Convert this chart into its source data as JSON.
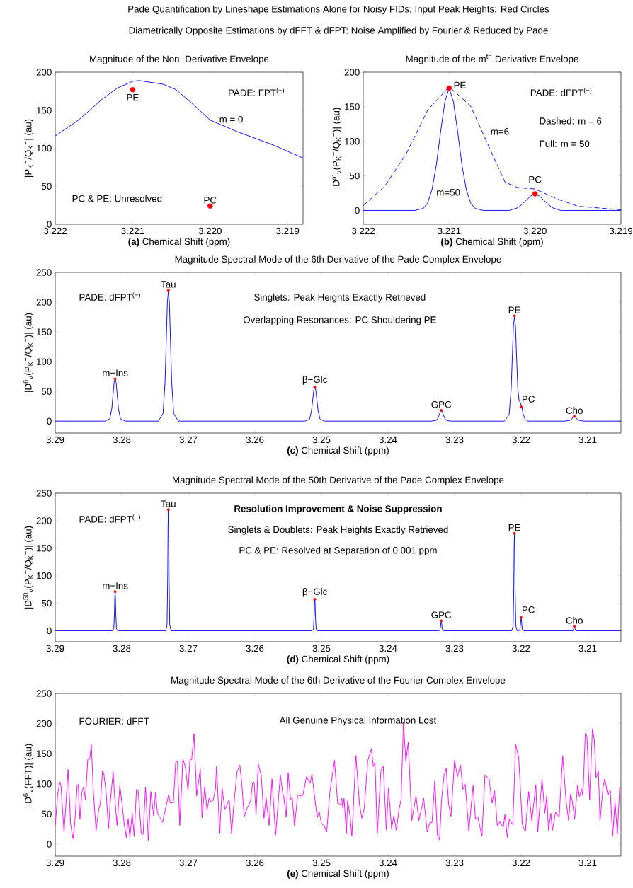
{
  "chart_data": [
    {
      "type": "line",
      "title": "Magnitude of the Non−Derivative Envelope",
      "xlabel": "**(a)** Chemical Shift (ppm)",
      "ylabel": "|P$_{K}$$^{−}$/Q$_{K}$$^{−}$| (au)",
      "xlim": [
        3.222,
        3.2188
      ],
      "xticks": [
        3.222,
        3.221,
        {
          "value": 3.22,
          "label": "3.220"
        },
        3.219
      ],
      "ylim": [
        0,
        200
      ],
      "yticks": [
        0,
        50,
        100,
        150,
        200
      ],
      "series": [
        {
          "name": "m = 0",
          "color": "#0000ff",
          "x": [
            3.222,
            3.2217,
            3.2214,
            3.2212,
            3.221,
            3.22092,
            3.2206,
            3.22044,
            3.2202,
            3.22,
            3.21968,
            3.21918,
            3.2188
          ],
          "values": [
            116,
            137,
            164,
            179,
            188,
            189,
            184,
            177,
            156,
            137,
            123,
            104,
            87
          ]
        },
        {
          "type": "scatter",
          "marker": "circle",
          "color": "#ff0000",
          "x": [
            3.221,
            3.22
          ],
          "values": [
            177,
            24
          ]
        }
      ],
      "annotations": [
        "Pade Quantification by Lineshape Estimations Alone for Noisy FIDs; Input Peak Heights: Red Circles",
        "Diametrically Opposite Estimations by dFFT & dFPT: Noise Amplified by Fourier & Reduced by Pade",
        "PADE: FPT$^{(−)}$",
        "PC & PE: Unresolved",
        {
          "text": "PE",
          "x": 3.221,
          "y": 177
        },
        {
          "text": "PC",
          "x": 3.22,
          "y": 24
        }
      ]
    },
    {
      "type": "line",
      "title": "Magnitude of the m$^{th}$ Derivative Envelope",
      "xlabel": "**(b)** Chemical Shift (ppm)",
      "ylabel": "|D$^{m}$$_{ν}$(P$_{K}$$^{−}$/Q$_{K}$$^{−}$)| (au)",
      "xlim": [
        3.222,
        3.219
      ],
      "xticks": [
        3.222,
        3.221,
        {
          "value": 3.22,
          "label": "3.220"
        },
        3.219
      ],
      "ylim": [
        -20,
        200
      ],
      "yticks": [
        0,
        50,
        100,
        150,
        200
      ],
      "series": [
        {
          "name": "m=6",
          "color": "#0000ff",
          "line_style": "dashed",
          "x": [
            3.222,
            3.22175,
            3.2215,
            3.22125,
            3.221,
            3.22075,
            3.2205,
            3.22035,
            3.2202,
            3.22,
            3.21975,
            3.2195,
            3.219
          ],
          "values": [
            7,
            35,
            82,
            145,
            179,
            151,
            82,
            41,
            33,
            31,
            17,
            6,
            1
          ]
        },
        {
          "name": "m=50",
          "color": "#0000ff",
          "line_style": "solid",
          "x": [
            3.222,
            3.2214,
            3.2213,
            3.22125,
            3.2212,
            3.22115,
            3.2211,
            3.22105,
            3.221,
            3.22095,
            3.2209,
            3.22085,
            3.2208,
            3.22075,
            3.2207,
            3.2206,
            3.2203,
            3.2202,
            3.22015,
            3.2201,
            3.22005,
            3.22,
            3.21995,
            3.2199,
            3.21985,
            3.2198,
            3.2197,
            3.219
          ],
          "values": [
            0,
            0,
            3,
            11,
            30,
            65,
            113,
            157,
            177,
            157,
            113,
            65,
            30,
            11,
            3,
            0,
            0,
            4,
            9,
            15,
            21,
            24,
            21,
            15,
            9,
            4,
            0,
            0
          ]
        },
        {
          "type": "scatter",
          "marker": "circle",
          "color": "#ff0000",
          "x": [
            3.221,
            3.22
          ],
          "values": [
            177,
            24
          ]
        }
      ],
      "annotations": [
        "PADE: dFPT$^{(−)}$",
        "Dashed: m = 6",
        "Full: m = 50",
        {
          "text": "PE",
          "x": 3.221,
          "y": 177
        },
        {
          "text": "PC",
          "x": 3.22,
          "y": 24
        }
      ]
    },
    {
      "type": "line",
      "title": "Magnitude Spectral Mode of the 6th Derivative of the Pade Complex Envelope",
      "xlabel": "**(c)** Chemical Shift (ppm)",
      "ylabel": "|D$^{6}$$_{ν}$(P$_{K}$$^{−}$/Q$_{K}$$^{−}$)| (au)",
      "xlim": [
        3.29,
        3.205
      ],
      "xticks": [
        3.29,
        3.28,
        3.27,
        3.26,
        3.25,
        3.24,
        3.23,
        3.22,
        3.21
      ],
      "ylim": [
        -20,
        250
      ],
      "yticks": [
        0,
        50,
        100,
        150,
        200,
        250
      ],
      "series": [
        {
          "color": "#0000ff",
          "x": [
            3.29,
            3.2825,
            3.2818,
            3.2815,
            3.2813,
            3.28115,
            3.281,
            3.28085,
            3.2807,
            3.2805,
            3.2802,
            3.2795,
            3.2745,
            3.2738,
            3.2735,
            3.2733,
            3.27315,
            3.273,
            3.27285,
            3.2727,
            3.2725,
            3.2722,
            3.2715,
            3.2525,
            3.2518,
            3.2515,
            3.2513,
            3.25115,
            3.251,
            3.25085,
            3.2507,
            3.2505,
            3.2502,
            3.2495,
            3.2335,
            3.2328,
            3.2325,
            3.2323,
            3.23215,
            3.232,
            3.23185,
            3.2317,
            3.2315,
            3.2312,
            3.2305,
            3.2225,
            3.2218,
            3.2215,
            3.2213,
            3.22115,
            3.221,
            3.22085,
            3.2207,
            3.2205,
            3.2203,
            3.2201,
            3.2199,
            3.2197,
            3.2194,
            3.219,
            3.2135,
            3.2128,
            3.2125,
            3.2123,
            3.21215,
            3.212,
            3.21185,
            3.2117,
            3.2115,
            3.2112,
            3.2105,
            3.205
          ],
          "values": [
            0,
            0,
            4,
            21,
            46,
            65,
            71,
            65,
            46,
            21,
            4,
            0,
            0,
            13,
            65,
            142,
            200,
            218,
            200,
            142,
            65,
            13,
            0,
            0,
            3,
            17,
            37,
            52,
            57,
            52,
            37,
            17,
            3,
            0,
            0,
            1,
            5,
            11,
            16,
            17,
            16,
            11,
            5,
            1,
            0,
            0,
            11,
            53,
            114,
            161,
            175,
            161,
            114,
            55,
            34,
            31,
            24,
            12,
            3,
            0,
            0,
            1,
            2,
            5,
            7,
            8,
            7,
            5,
            2,
            1,
            0,
            0
          ]
        },
        {
          "type": "scatter",
          "marker": "circle",
          "color": "#ff0000",
          "x": [
            3.281,
            3.273,
            3.251,
            3.232,
            3.221,
            3.22,
            3.212
          ],
          "values": [
            71,
            220,
            57,
            18,
            177,
            24,
            8
          ]
        }
      ],
      "annotations": [
        "PADE: dFPT$^{(−)}$",
        "Singlets: Peak Heights Exactly Retrieved",
        "Overlapping Resonances: PC Shouldering PE",
        {
          "text": "m−Ins",
          "x": 3.281,
          "y": 71
        },
        {
          "text": "Tau",
          "x": 3.273,
          "y": 220
        },
        {
          "text": "β−Glc",
          "x": 3.251,
          "y": 57
        },
        {
          "text": "GPC",
          "x": 3.232,
          "y": 18
        },
        {
          "text": "PE",
          "x": 3.221,
          "y": 177
        },
        {
          "text": "PC",
          "x": 3.22,
          "y": 24
        },
        {
          "text": "Cho",
          "x": 3.212,
          "y": 8
        }
      ]
    },
    {
      "type": "line",
      "title": "Magnitude Spectral Mode of the 50th Derivative of the Pade Complex Envelope",
      "xlabel": "**(d)** Chemical Shift (ppm)",
      "ylabel": "|D$^{50}$$_{ν}$(P$_{K}$$^{−}$/Q$_{K}$$^{−}$)| (au)",
      "xlim": [
        3.29,
        3.205
      ],
      "xticks": [
        3.29,
        3.28,
        3.27,
        3.26,
        3.25,
        3.24,
        3.23,
        3.22,
        3.21
      ],
      "ylim": [
        -20,
        250
      ],
      "yticks": [
        0,
        50,
        100,
        150,
        200,
        250
      ],
      "series": [
        {
          "color": "#0000ff",
          "x": [
            3.29,
            3.2814,
            3.2812,
            3.2811,
            3.28105,
            3.281,
            3.28095,
            3.2809,
            3.2808,
            3.2806,
            3.2734,
            3.2732,
            3.2731,
            3.27305,
            3.273,
            3.27295,
            3.2729,
            3.2728,
            3.2726,
            3.2514,
            3.2512,
            3.2511,
            3.25105,
            3.251,
            3.25095,
            3.2509,
            3.2508,
            3.2506,
            3.2324,
            3.2322,
            3.2321,
            3.23205,
            3.232,
            3.23195,
            3.2319,
            3.2318,
            3.2316,
            3.2214,
            3.2212,
            3.2211,
            3.22105,
            3.221,
            3.22095,
            3.2209,
            3.2208,
            3.2206,
            3.2204,
            3.2202,
            3.2201,
            3.22005,
            3.22,
            3.21995,
            3.2199,
            3.2198,
            3.2196,
            3.2124,
            3.2122,
            3.2121,
            3.21205,
            3.212,
            3.21195,
            3.2119,
            3.2118,
            3.2116,
            3.205
          ],
          "values": [
            0,
            0,
            4,
            32,
            60,
            71,
            60,
            32,
            4,
            0,
            0,
            11,
            99,
            187,
            220,
            187,
            99,
            11,
            0,
            0,
            3,
            26,
            48,
            57,
            48,
            26,
            3,
            0,
            0,
            1,
            8,
            15,
            18,
            15,
            8,
            1,
            0,
            0,
            9,
            80,
            150,
            177,
            150,
            80,
            9,
            0,
            0,
            1,
            11,
            20,
            24,
            20,
            11,
            1,
            0,
            0,
            0,
            4,
            7,
            8,
            7,
            4,
            0,
            0,
            0
          ]
        },
        {
          "type": "scatter",
          "marker": "circle",
          "color": "#ff0000",
          "x": [
            3.281,
            3.273,
            3.251,
            3.232,
            3.221,
            3.22,
            3.212
          ],
          "values": [
            71,
            220,
            57,
            18,
            177,
            24,
            8
          ]
        }
      ],
      "annotations": [
        "PADE: dFPT$^{(−)}$",
        "Resolution Improvement & Noise Suppression",
        "Singlets & Doublets: Peak Heights Exactly Retrieved",
        "PC & PE: Resolved at Separation of 0.001 ppm",
        {
          "text": "m−Ins",
          "x": 3.281,
          "y": 71
        },
        {
          "text": "Tau",
          "x": 3.273,
          "y": 220
        },
        {
          "text": "β−Glc",
          "x": 3.251,
          "y": 57
        },
        {
          "text": "GPC",
          "x": 3.232,
          "y": 18
        },
        {
          "text": "PE",
          "x": 3.221,
          "y": 177
        },
        {
          "text": "PC",
          "x": 3.22,
          "y": 24
        },
        {
          "text": "Cho",
          "x": 3.212,
          "y": 8
        }
      ]
    },
    {
      "type": "line",
      "title": "Magnitude Spectral Mode of the 6th Derivative of the Fourier Complex Envelope",
      "xlabel": "**(e)** Chemical Shift (ppm)",
      "ylabel": "|D$^{6}$$_{ν}$(FFT)| (au)",
      "xlim": [
        3.29,
        3.205
      ],
      "xticks": [
        3.29,
        3.28,
        3.27,
        3.26,
        3.25,
        3.24,
        3.23,
        3.22,
        3.21
      ],
      "ylim": [
        -20,
        250
      ],
      "yticks": [
        0,
        50,
        100,
        150,
        200,
        250
      ],
      "series": [
        {
          "color": "#ff00ff",
          "x": [
            3.29,
            3.28964,
            3.28929,
            3.28914,
            3.28868,
            3.28839,
            3.28807,
            3.28768,
            3.28732,
            3.28707,
            3.28671,
            3.28654,
            3.28629,
            3.286,
            3.28575,
            3.28546,
            3.28511,
            3.28482,
            3.28457,
            3.28429,
            3.28386,
            3.2835,
            3.28321,
            3.28289,
            3.28271,
            3.28236,
            3.282,
            3.28171,
            3.28129,
            3.28111,
            3.28071,
            3.28029,
            3.27993,
            3.27964,
            3.27932,
            3.27904,
            3.27879,
            3.27843,
            3.27814,
            3.27779,
            3.27754,
            3.27707,
            3.27679,
            3.27643,
            3.276,
            3.27564,
            3.27521,
            3.27493,
            3.27464,
            3.27421,
            3.27386,
            3.2735,
            3.27296,
            3.27271,
            3.27225,
            3.27189,
            3.27164,
            3.27129,
            3.27082,
            3.27046,
            3.27004,
            3.26975,
            3.2695,
            3.26914,
            3.26875,
            3.26821,
            3.26793,
            3.26754,
            3.26718,
            3.26689,
            3.26661,
            3.26629,
            3.26593,
            3.26575,
            3.26529,
            3.26493,
            3.2645,
            3.26386,
            3.2635,
            3.26321,
            3.26268,
            3.26225,
            3.26193,
            3.26161,
            3.26118,
            3.26064,
            3.26036,
            3.26011,
            3.25982,
            3.2595,
            3.25904,
            3.25864,
            3.25832,
            3.25786,
            3.25743,
            3.25689,
            3.25618,
            3.25582,
            3.25564,
            3.25529,
            3.255,
            3.25464,
            3.25439,
            3.25404,
            3.25357,
            3.25314,
            3.25279,
            3.25225,
            3.25171,
            3.25143,
            3.25107,
            3.25064,
            3.25036,
            3.25,
            3.24957,
            3.24921,
            3.24875,
            3.24804,
            3.24757,
            3.24714,
            3.24696,
            3.24679,
            3.24661,
            3.24625,
            3.24607,
            3.24571,
            3.24543,
            3.24482,
            3.24429,
            3.24393,
            3.24357,
            3.24304,
            3.2425,
            3.24221,
            3.24196,
            3.24161,
            3.24107,
            3.24071,
            3.24025,
            3.23993,
            3.23946,
            3.23911,
            3.23875,
            3.23832,
            3.23804,
            3.23768,
            3.23732,
            3.23696,
            3.23643,
            3.23579,
            3.23536,
            3.23464,
            3.23411,
            3.23375,
            3.23339,
            3.23296,
            3.23257,
            3.23225,
            3.23196,
            3.23161,
            3.23125,
            3.23089,
            3.23054,
            3.23,
            3.22957,
            3.22911,
            3.22875,
            3.22839,
            3.22786,
            3.22721,
            3.22686,
            3.2265,
            3.22589,
            3.22543,
            3.22482,
            3.22436,
            3.224,
            3.22357,
            3.22321,
            3.22268,
            3.22243,
            3.22207,
            3.22179,
            3.22125,
            3.22082,
            3.22036,
            3.21982,
            3.21936,
            3.21886,
            3.21839,
            3.21779,
            3.2175,
            3.21686,
            3.21643,
            3.21614,
            3.21589,
            3.21554,
            3.21529,
            3.21482,
            3.21429,
            3.21375,
            3.21321,
            3.21286,
            3.21257,
            3.21232,
            3.21196,
            3.2115,
            3.21125,
            3.21089,
            3.21071,
            3.21036,
            3.21011,
            3.20971,
            3.20929,
            3.209,
            3.20875,
            3.20839,
            3.20814,
            3.20768,
            3.20743,
            3.20696,
            3.20661,
            3.20625,
            3.20589,
            3.20554,
            3.20518,
            3.205
          ],
          "values": [
            30,
            82,
            103,
            97,
            20,
            66,
            124,
            32,
            9,
            34,
            97,
            99,
            41,
            85,
            95,
            74,
            141,
            141,
            165,
            91,
            22,
            55,
            68,
            122,
            118,
            87,
            26,
            72,
            120,
            85,
            31,
            97,
            64,
            34,
            11,
            42,
            11,
            51,
            13,
            91,
            89,
            18,
            16,
            95,
            6,
            87,
            47,
            85,
            51,
            43,
            36,
            55,
            82,
            68,
            69,
            137,
            137,
            31,
            141,
            129,
            89,
            141,
            140,
            183,
            80,
            124,
            44,
            95,
            56,
            76,
            70,
            72,
            91,
            129,
            18,
            93,
            57,
            74,
            18,
            59,
            120,
            131,
            95,
            46,
            59,
            72,
            101,
            103,
            49,
            133,
            114,
            43,
            77,
            31,
            108,
            15,
            114,
            85,
            76,
            45,
            118,
            74,
            77,
            30,
            82,
            80,
            81,
            112,
            101,
            116,
            82,
            44,
            55,
            34,
            30,
            20,
            85,
            139,
            68,
            66,
            76,
            60,
            76,
            18,
            72,
            47,
            13,
            147,
            66,
            43,
            59,
            139,
            158,
            129,
            135,
            18,
            122,
            129,
            24,
            93,
            26,
            47,
            23,
            59,
            74,
            202,
            137,
            169,
            39,
            80,
            39,
            76,
            20,
            35,
            36,
            105,
            14,
            7,
            72,
            112,
            126,
            66,
            46,
            139,
            112,
            131,
            91,
            99,
            22,
            97,
            41,
            45,
            13,
            115,
            108,
            68,
            89,
            30,
            37,
            28,
            49,
            11,
            41,
            32,
            165,
            144,
            32,
            21,
            87,
            39,
            98,
            20,
            108,
            51,
            80,
            23,
            51,
            23,
            53,
            45,
            146,
            68,
            39,
            83,
            72,
            41,
            98,
            79,
            91,
            80,
            184,
            179,
            74,
            191,
            173,
            110,
            121,
            38,
            95,
            108,
            81,
            90,
            13,
            70,
            18,
            95,
            93
          ]
        }
      ],
      "annotations": [
        "FOURIER: dFFT",
        "All Genuine Physical Information Lost"
      ]
    }
  ]
}
